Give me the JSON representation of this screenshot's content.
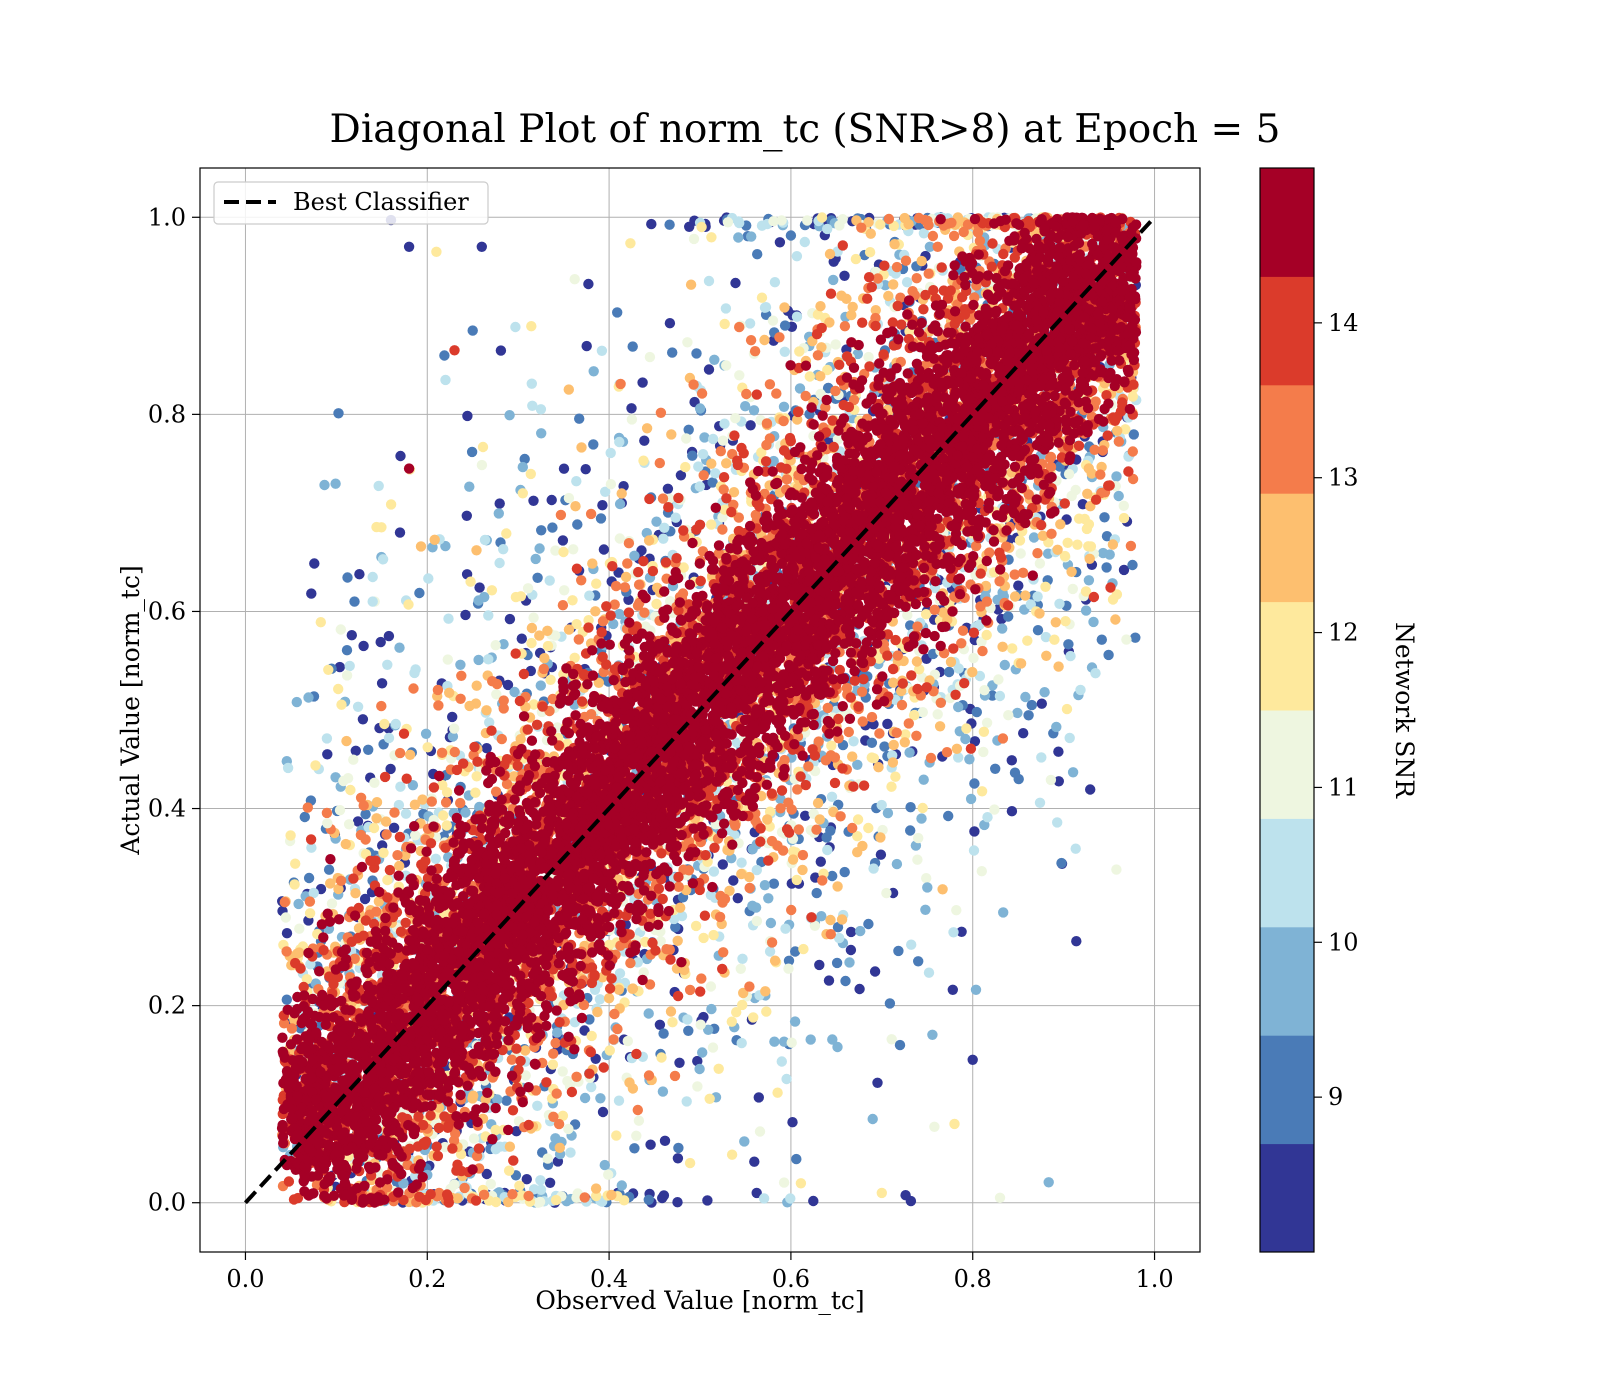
{
  "chart_data": {
    "type": "scatter",
    "title": "Diagonal Plot of norm_tc (SNR>8) at Epoch = 5",
    "xlabel": "Observed Value [norm_tc]",
    "ylabel": "Actual Value [norm_tc]",
    "xlim": [
      -0.05,
      1.05
    ],
    "ylim": [
      -0.05,
      1.05
    ],
    "xticks": [
      "0.0",
      "0.2",
      "0.4",
      "0.6",
      "0.8",
      "1.0"
    ],
    "yticks": [
      "0.0",
      "0.2",
      "0.4",
      "0.6",
      "0.8",
      "1.0"
    ],
    "grid": true,
    "legend": {
      "placement": "top-left",
      "entries": [
        "Best Classifier"
      ]
    },
    "reference_line": {
      "name": "Best Classifier",
      "x": [
        0.0,
        1.0
      ],
      "y": [
        0.0,
        1.0
      ],
      "style": "dashed",
      "color": "#000000"
    },
    "colorbar": {
      "label": "Network SNR",
      "range": [
        8,
        15
      ],
      "ticks": [
        "9",
        "10",
        "11",
        "12",
        "13",
        "14"
      ],
      "bands": [
        {
          "from": 8.0,
          "to": 8.7,
          "color": "#313695"
        },
        {
          "from": 8.7,
          "to": 9.4,
          "color": "#4a7bb7"
        },
        {
          "from": 9.4,
          "to": 10.1,
          "color": "#7fb3d5"
        },
        {
          "from": 10.1,
          "to": 10.8,
          "color": "#bde2ed"
        },
        {
          "from": 10.8,
          "to": 11.5,
          "color": "#eef6e0"
        },
        {
          "from": 11.5,
          "to": 12.2,
          "color": "#fee99d"
        },
        {
          "from": 12.2,
          "to": 12.9,
          "color": "#fdbf6f"
        },
        {
          "from": 12.9,
          "to": 13.6,
          "color": "#f47c4b"
        },
        {
          "from": 13.6,
          "to": 14.3,
          "color": "#db3b2b"
        },
        {
          "from": 14.3,
          "to": 15.0,
          "color": "#a50026"
        }
      ]
    },
    "points_note": "dense scatter of predictions around the diagonal; high-SNR points cluster tightly on the line, low-SNR points spread widely",
    "bulk": [
      {
        "snr": 14.6,
        "count": 7000,
        "spread": 0.06
      },
      {
        "snr": 14.0,
        "count": 2200,
        "spread": 0.09
      },
      {
        "snr": 13.3,
        "count": 1300,
        "spread": 0.12
      },
      {
        "snr": 12.6,
        "count": 900,
        "spread": 0.15
      },
      {
        "snr": 11.9,
        "count": 700,
        "spread": 0.17
      },
      {
        "snr": 11.2,
        "count": 600,
        "spread": 0.19
      },
      {
        "snr": 10.5,
        "count": 700,
        "spread": 0.2
      },
      {
        "snr": 9.8,
        "count": 650,
        "spread": 0.21
      },
      {
        "snr": 9.1,
        "count": 600,
        "spread": 0.22
      },
      {
        "snr": 8.4,
        "count": 650,
        "spread": 0.24
      }
    ],
    "outliers": [
      {
        "x": 0.18,
        "y": 0.97,
        "snr": 8.3
      },
      {
        "x": 0.21,
        "y": 0.965,
        "snr": 11.8
      },
      {
        "x": 0.26,
        "y": 0.97,
        "snr": 8.4
      },
      {
        "x": 0.23,
        "y": 0.865,
        "snr": 14.0
      },
      {
        "x": 0.25,
        "y": 0.885,
        "snr": 8.8
      },
      {
        "x": 0.22,
        "y": 0.835,
        "snr": 10.5
      },
      {
        "x": 0.18,
        "y": 0.745,
        "snr": 14.6
      },
      {
        "x": 0.17,
        "y": 0.68,
        "snr": 8.3
      },
      {
        "x": 0.12,
        "y": 0.61,
        "snr": 9.1
      },
      {
        "x": 0.14,
        "y": 0.635,
        "snr": 10.4
      },
      {
        "x": 0.14,
        "y": 0.61,
        "snr": 10.6
      },
      {
        "x": 0.13,
        "y": 0.565,
        "snr": 8.3
      },
      {
        "x": 0.09,
        "y": 0.455,
        "snr": 8.4
      },
      {
        "x": 0.09,
        "y": 0.385,
        "snr": 11.0
      },
      {
        "x": 0.865,
        "y": 0.505,
        "snr": 8.8
      },
      {
        "x": 0.78,
        "y": 0.08,
        "snr": 12.0
      },
      {
        "x": 0.83,
        "y": 0.005,
        "snr": 11.0
      },
      {
        "x": 0.8,
        "y": 0.145,
        "snr": 8.3
      },
      {
        "x": 0.75,
        "y": 0.32,
        "snr": 9.5
      },
      {
        "x": 0.74,
        "y": 0.245,
        "snr": 9.1
      },
      {
        "x": 0.72,
        "y": 0.16,
        "snr": 9.0
      },
      {
        "x": 0.7,
        "y": 0.01,
        "snr": 12.0
      },
      {
        "x": 0.69,
        "y": 0.085,
        "snr": 9.5
      },
      {
        "x": 0.66,
        "y": 0.225,
        "snr": 9.0
      },
      {
        "x": 0.88,
        "y": 0.625,
        "snr": 11.8
      },
      {
        "x": 0.74,
        "y": 0.37,
        "snr": 11.0
      }
    ]
  }
}
